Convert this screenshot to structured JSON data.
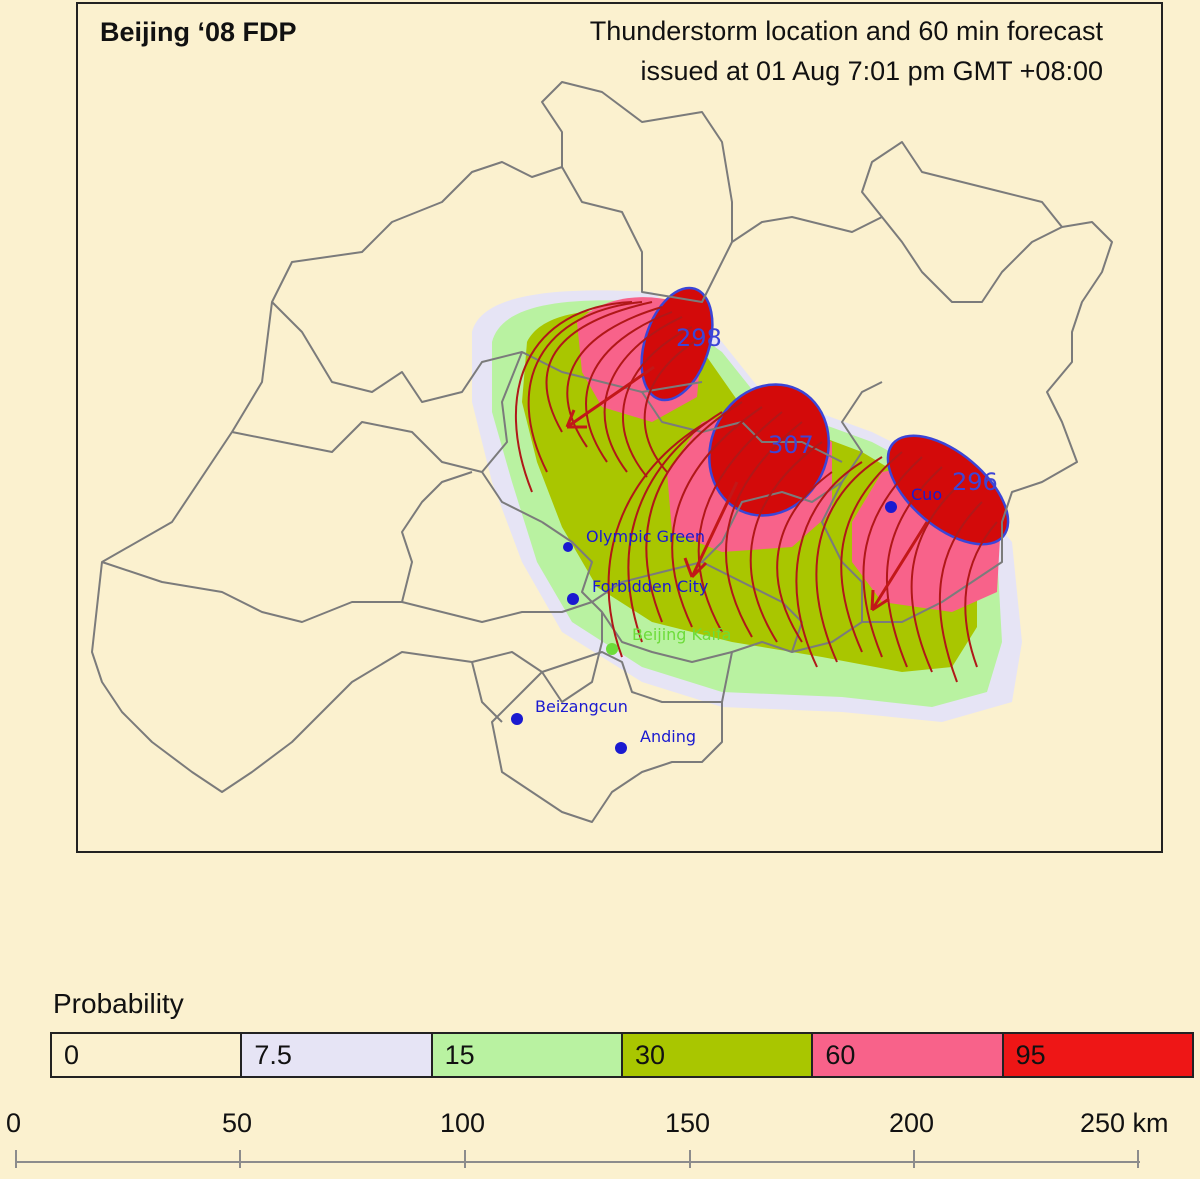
{
  "map": {
    "title": "Beijing ‘08 FDP",
    "forecast_line_1": "Thunderstorm location and 60 min forecast",
    "forecast_line_2": "issued at 01 Aug 7:01 pm GMT +08:00",
    "places": [
      {
        "name": "Olympic Green",
        "color": "#1a1ad0"
      },
      {
        "name": "Forbidden City",
        "color": "#1a1ad0"
      },
      {
        "name": "Beijing Kaifa",
        "color": "#6ddc3a"
      },
      {
        "name": "Beizangcun",
        "color": "#1a1ad0"
      },
      {
        "name": "Anding",
        "color": "#1a1ad0"
      },
      {
        "name": "Cuo",
        "color": "#1a1ad0"
      }
    ],
    "storms": [
      {
        "id": "298"
      },
      {
        "id": "307"
      },
      {
        "id": "296"
      }
    ],
    "colors": {
      "boundary": "#7b7b7b",
      "forecast_contour": "#b01818",
      "storm_outline": "#3a45d8",
      "storm_fill": "#d30a0a"
    }
  },
  "legend": {
    "title": "Probability",
    "bins": [
      {
        "label": "0",
        "color": "#fbf1cf"
      },
      {
        "label": "7.5",
        "color": "#e6e4f5"
      },
      {
        "label": "15",
        "color": "#b9f2a1"
      },
      {
        "label": "30",
        "color": "#a9c600"
      },
      {
        "label": "60",
        "color": "#f8628a"
      },
      {
        "label": "95",
        "color": "#ee1616"
      }
    ]
  },
  "scale": {
    "ticks": [
      "0",
      "50",
      "100",
      "150",
      "200",
      "250 km"
    ]
  }
}
